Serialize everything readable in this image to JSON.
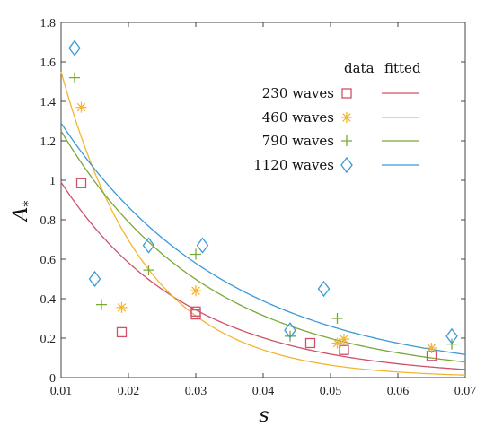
{
  "chart_data": {
    "type": "scatter",
    "xlabel": "s",
    "ylabel": "A",
    "ylabel_sub": "*",
    "xlim": [
      0.01,
      0.07
    ],
    "ylim": [
      0,
      1.8
    ],
    "xticks": [
      "0.01",
      "0.02",
      "0.03",
      "0.04",
      "0.05",
      "0.06",
      "0.07"
    ],
    "yticks": [
      "0",
      "0.2",
      "0.4",
      "0.6",
      "0.8",
      "1",
      "1.2",
      "1.4",
      "1.6",
      "1.8"
    ],
    "legend": {
      "position": "top-right",
      "header_data": "data",
      "header_fitted": "fitted"
    },
    "series": [
      {
        "name": "230 waves",
        "marker": "square",
        "color": "#d0506a",
        "points": [
          [
            0.013,
            0.985
          ],
          [
            0.019,
            0.23
          ],
          [
            0.03,
            0.335
          ],
          [
            0.03,
            0.32
          ],
          [
            0.047,
            0.175
          ],
          [
            0.052,
            0.14
          ],
          [
            0.065,
            0.11
          ]
        ],
        "fit": {
          "a": 0.99,
          "b": 53.0
        }
      },
      {
        "name": "460 waves",
        "marker": "asterisk",
        "color": "#f5b430",
        "points": [
          [
            0.013,
            1.37
          ],
          [
            0.019,
            0.355
          ],
          [
            0.03,
            0.44
          ],
          [
            0.051,
            0.175
          ],
          [
            0.052,
            0.195
          ],
          [
            0.065,
            0.15
          ]
        ],
        "fit": {
          "a": 1.55,
          "b": 80.0
        }
      },
      {
        "name": "790 waves",
        "marker": "plus",
        "color": "#7aa838",
        "points": [
          [
            0.012,
            1.52
          ],
          [
            0.016,
            0.37
          ],
          [
            0.023,
            0.545
          ],
          [
            0.03,
            0.625
          ],
          [
            0.044,
            0.21
          ],
          [
            0.051,
            0.3
          ],
          [
            0.068,
            0.17
          ]
        ],
        "fit": {
          "a": 1.25,
          "b": 46.0
        }
      },
      {
        "name": "1120 waves",
        "marker": "diamond",
        "color": "#3a9ad6",
        "points": [
          [
            0.012,
            1.67
          ],
          [
            0.015,
            0.5
          ],
          [
            0.023,
            0.67
          ],
          [
            0.031,
            0.67
          ],
          [
            0.044,
            0.24
          ],
          [
            0.049,
            0.45
          ],
          [
            0.068,
            0.21
          ]
        ],
        "fit": {
          "a": 1.29,
          "b": 40.0
        }
      }
    ]
  }
}
